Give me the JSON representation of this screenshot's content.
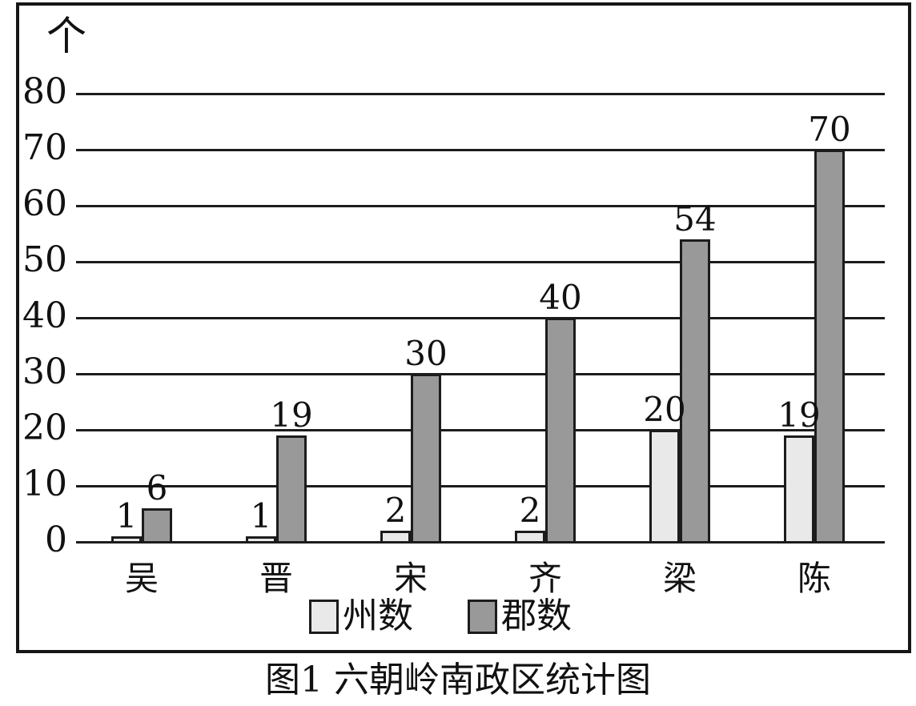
{
  "figure": {
    "caption": "图1 六朝岭南政区统计图",
    "unit_label": "个"
  },
  "colors": {
    "background": "#ffffff",
    "line": "#1c1c1c",
    "series_zhou": "#e9e9e9",
    "series_jun": "#999999"
  },
  "chart_data": {
    "type": "bar",
    "title": "图1 六朝岭南政区统计图",
    "unit": "个",
    "categories": [
      "吴",
      "晋",
      "宋",
      "齐",
      "梁",
      "陈"
    ],
    "series": [
      {
        "name": "州数",
        "color": "#e9e9e9",
        "values": [
          1,
          1,
          2,
          2,
          20,
          19
        ]
      },
      {
        "name": "郡数",
        "color": "#999999",
        "values": [
          6,
          19,
          30,
          40,
          54,
          70
        ]
      }
    ],
    "ylim": [
      0,
      80
    ],
    "yticks": [
      0,
      10,
      20,
      30,
      40,
      50,
      60,
      70,
      80
    ],
    "grid": "horizontal",
    "data_labels": true,
    "legend_position": "bottom"
  }
}
